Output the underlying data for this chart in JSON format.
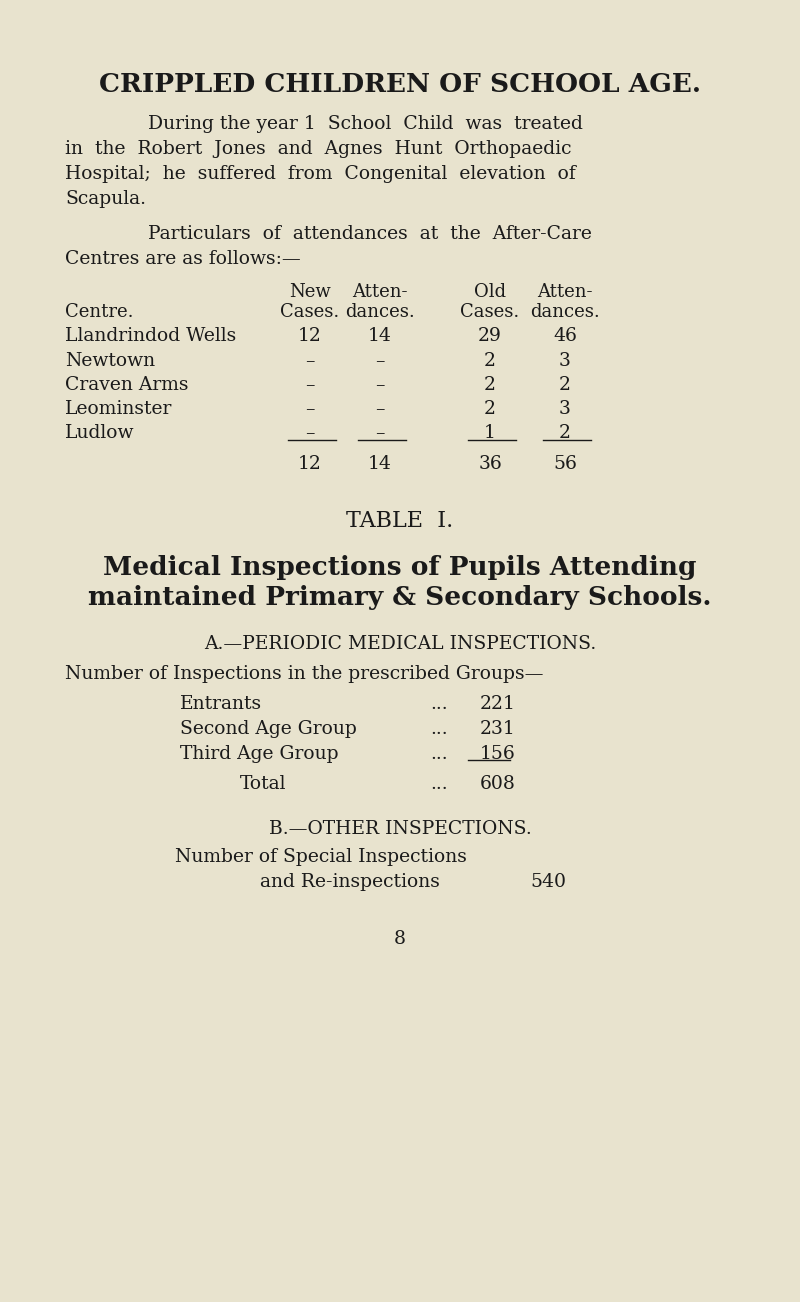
{
  "bg_color": "#e8e3ce",
  "text_color": "#1a1a1a",
  "title": "CRIPPLED CHILDREN OF SCHOOL AGE.",
  "p1_line1": "During the year 1  School  Child  was  treated",
  "p1_line2": "in  the  Robert  Jones  and  Agnes  Hunt  Orthopaedic",
  "p1_line3": "Hospital;  he  suffered  from  Congenital  elevation  of",
  "p1_line4": "Scapula.",
  "p2_line1": "Particulars  of  attendances  at  the  After-Care",
  "p2_line2": "Centres are as follows:—",
  "col_header1": [
    "New",
    "Atten-",
    "Old",
    "Atten-"
  ],
  "col_header2": [
    "Centre.",
    "Cases.",
    "dances.",
    "Cases.",
    "dances."
  ],
  "table_rows": [
    [
      "Llandrindod Wells",
      "12",
      "14",
      "29",
      "46"
    ],
    [
      "Newtown",
      "–",
      "–",
      "2",
      "3"
    ],
    [
      "Craven Arms",
      "–",
      "–",
      "2",
      "2"
    ],
    [
      "Leominster",
      "–",
      "–",
      "2",
      "3"
    ],
    [
      "Ludlow",
      "–",
      "–",
      "1",
      "2"
    ]
  ],
  "table_totals": [
    "12",
    "14",
    "36",
    "56"
  ],
  "table2_title": "TABLE  I.",
  "subtitle1": "Medical Inspections of Pupils Attending",
  "subtitle2": "maintained Primary & Secondary Schools.",
  "sec_a_title": "A.—PERIODIC MEDICAL INSPECTIONS.",
  "sec_a_intro": "Number of Inspections in the prescribed Groups—",
  "insp_labels": [
    "Entrants",
    "Second Age Group",
    "Third Age Group"
  ],
  "insp_values": [
    "221",
    "231",
    "156"
  ],
  "total_label": "Total",
  "total_value": "608",
  "sec_b_title": "B.—OTHER INSPECTIONS.",
  "sec_b_line1": "Number of Special Inspections",
  "sec_b_line2": "and Re-inspections",
  "sec_b_value": "540",
  "page_num": "8"
}
